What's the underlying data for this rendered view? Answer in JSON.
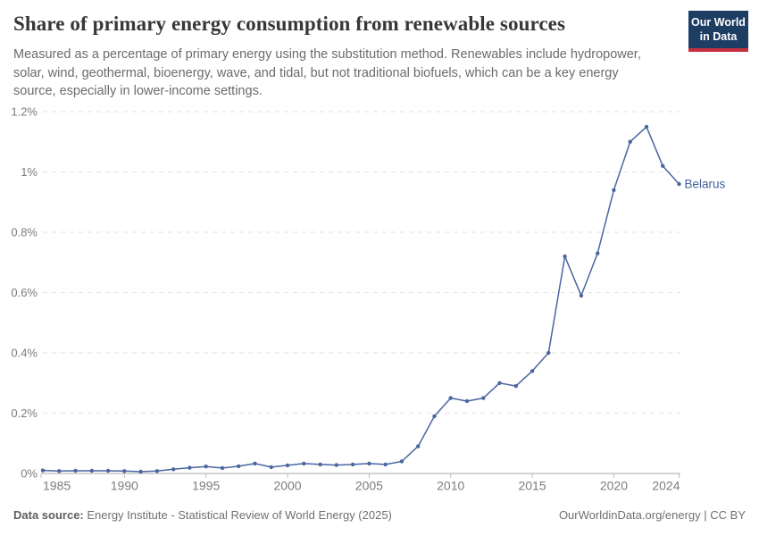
{
  "header": {
    "title": "Share of primary energy consumption from renewable sources",
    "subtitle": "Measured as a percentage of primary energy using the substitution method. Renewables include hydropower, solar, wind, geothermal, bioenergy, wave, and tidal, but not traditional biofuels, which can be a key energy source, especially in lower-income settings.",
    "logo": {
      "line1": "Our World",
      "line2": "in Data"
    }
  },
  "chart_data": {
    "type": "line",
    "title": "Share of primary energy consumption from renewable sources",
    "entity": "Belarus",
    "unit": "%",
    "x": [
      1985,
      1986,
      1987,
      1988,
      1989,
      1990,
      1991,
      1992,
      1993,
      1994,
      1995,
      1996,
      1997,
      1998,
      1999,
      2000,
      2001,
      2002,
      2003,
      2004,
      2005,
      2006,
      2007,
      2008,
      2009,
      2010,
      2011,
      2012,
      2013,
      2014,
      2015,
      2016,
      2017,
      2018,
      2019,
      2020,
      2021,
      2022,
      2023,
      2024
    ],
    "values": [
      0.01,
      0.008,
      0.009,
      0.009,
      0.009,
      0.008,
      0.006,
      0.008,
      0.014,
      0.019,
      0.023,
      0.018,
      0.024,
      0.033,
      0.021,
      0.027,
      0.033,
      0.03,
      0.028,
      0.03,
      0.033,
      0.03,
      0.04,
      0.09,
      0.19,
      0.25,
      0.24,
      0.25,
      0.3,
      0.29,
      0.34,
      0.4,
      0.72,
      0.59,
      0.73,
      0.94,
      1.1,
      1.15,
      1.02,
      0.96
    ],
    "ylim": [
      0,
      1.2
    ],
    "yticks": [
      {
        "value": 0,
        "label": "0%"
      },
      {
        "value": 0.2,
        "label": "0.2%"
      },
      {
        "value": 0.4,
        "label": "0.4%"
      },
      {
        "value": 0.6,
        "label": "0.6%"
      },
      {
        "value": 0.8,
        "label": "0.8%"
      },
      {
        "value": 1.0,
        "label": "1%"
      },
      {
        "value": 1.2,
        "label": "1.2%"
      }
    ],
    "xticks": [
      {
        "value": 1985,
        "label": "1985"
      },
      {
        "value": 1990,
        "label": "1990"
      },
      {
        "value": 1995,
        "label": "1995"
      },
      {
        "value": 2000,
        "label": "2000"
      },
      {
        "value": 2005,
        "label": "2005"
      },
      {
        "value": 2010,
        "label": "2010"
      },
      {
        "value": 2015,
        "label": "2015"
      },
      {
        "value": 2020,
        "label": "2020"
      },
      {
        "value": 2024,
        "label": "2024"
      }
    ],
    "grid": true,
    "legend_position": "end-of-line-label",
    "colors": {
      "line": "#4a66a0",
      "entity_label": "#41609b",
      "grid": "#e2e2e2",
      "axis": "#a8a8a8",
      "tick": "#bdbdbd",
      "tick_text": "#7c7c7c"
    }
  },
  "footer": {
    "datasource_label": "Data source:",
    "datasource_text": " Energy Institute - Statistical Review of World Energy (2025)",
    "right_text": "OurWorldinData.org/energy | CC BY"
  }
}
